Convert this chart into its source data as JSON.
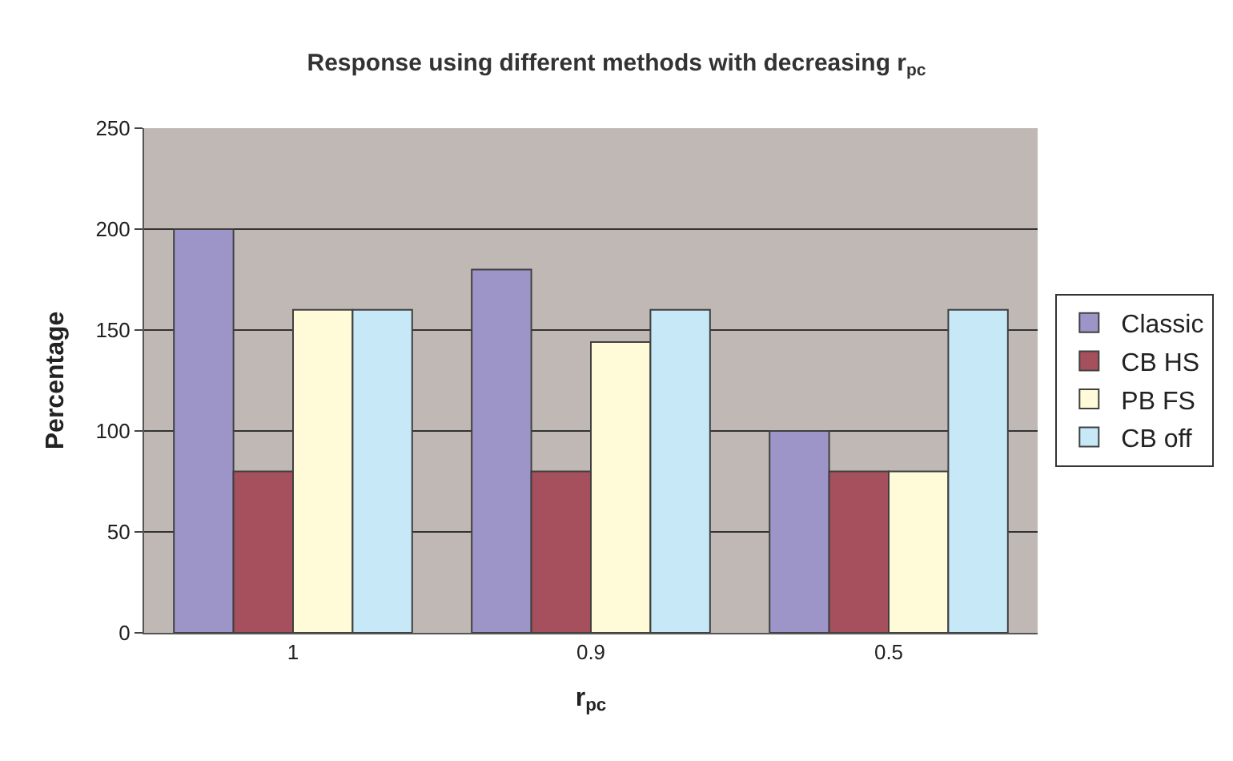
{
  "chart_data": {
    "type": "bar",
    "title": "Response using different methods with decreasing r$_{pc}$",
    "xlabel": "r$_{pc}$",
    "ylabel": "Percentage",
    "categories": [
      "1",
      "0.9",
      "0.5"
    ],
    "series": [
      {
        "name": "Classic",
        "color": "#9d95c8",
        "values": [
          200,
          180,
          100
        ]
      },
      {
        "name": "CB HS",
        "color": "#a5505c",
        "values": [
          80,
          80,
          80
        ]
      },
      {
        "name": "PB FS",
        "color": "#fffad8",
        "values": [
          160,
          144,
          80
        ]
      },
      {
        "name": "CB off",
        "color": "#c7e8f7",
        "values": [
          160,
          160,
          160
        ]
      }
    ],
    "ylim": [
      0,
      250
    ],
    "yticks": [
      0,
      50,
      100,
      150,
      200,
      250
    ],
    "grid": "y",
    "legend": "right"
  }
}
